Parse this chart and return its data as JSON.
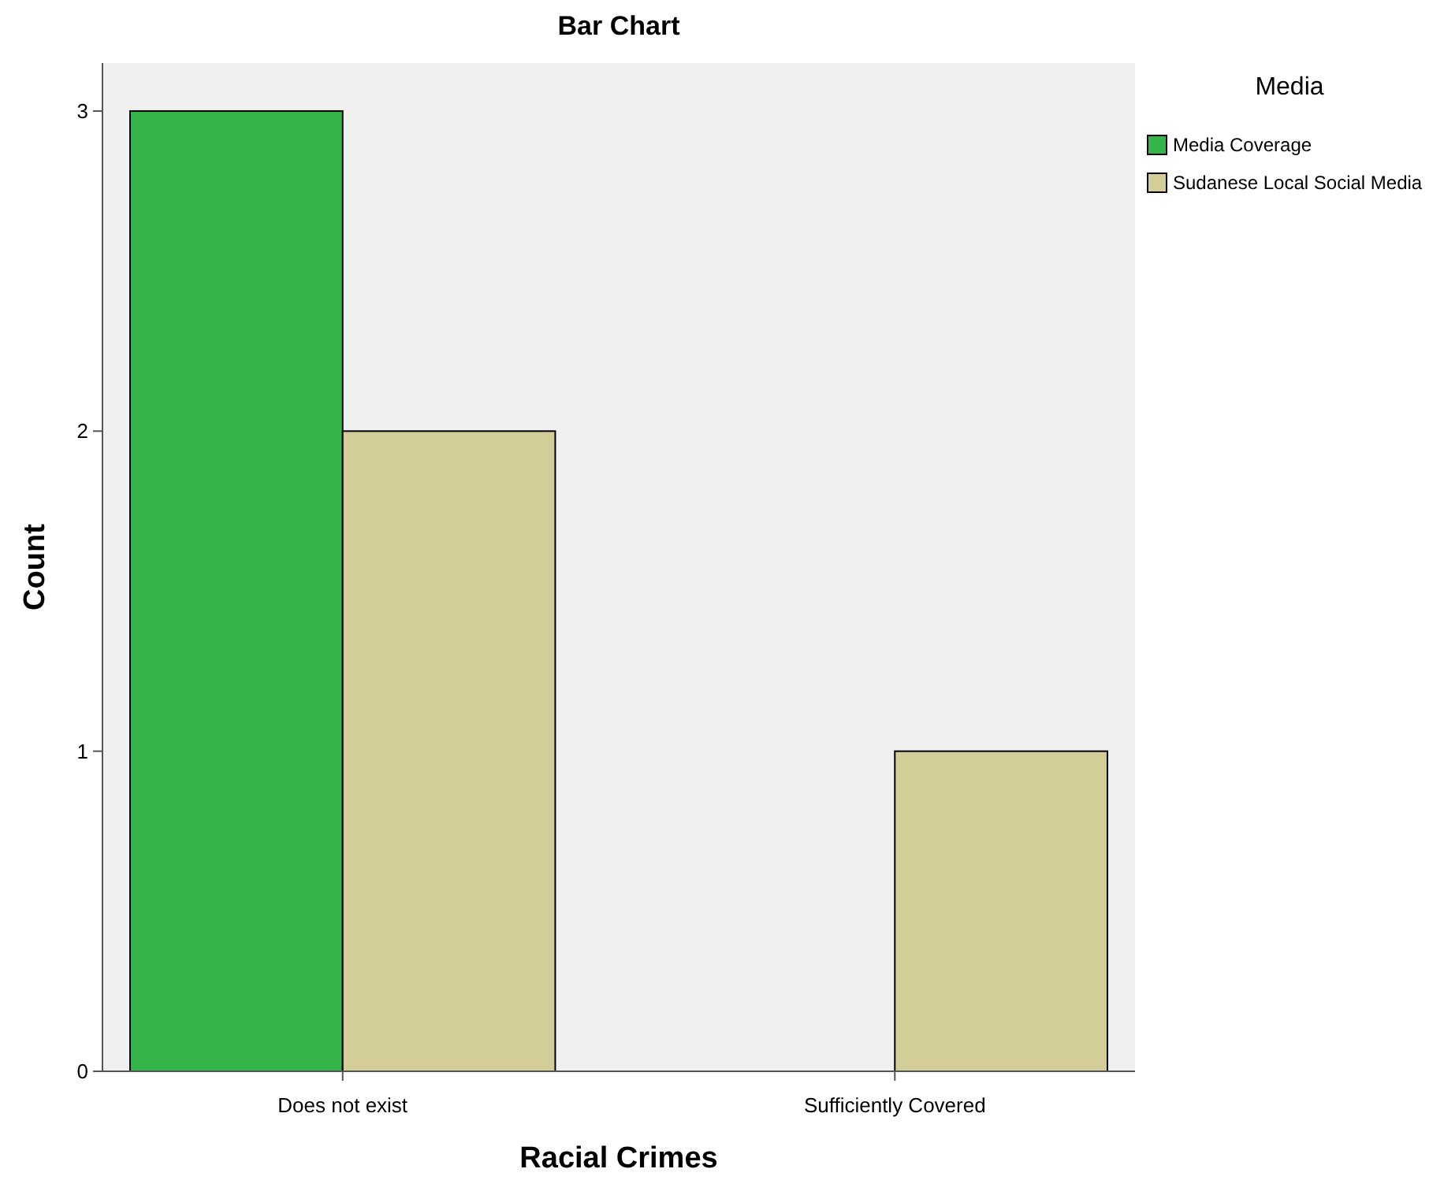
{
  "chart_data": {
    "type": "bar",
    "title": "Bar Chart",
    "xlabel": "Racial Crimes",
    "ylabel": "Count",
    "legend_title": "Media",
    "categories": [
      "Does not exist",
      "Sufficiently Covered"
    ],
    "series": [
      {
        "name": "Media Coverage",
        "color": "#33b54a",
        "values": [
          3,
          null
        ]
      },
      {
        "name": "Sudanese Local Social Media",
        "color": "#d3ce97",
        "values": [
          2,
          1
        ]
      }
    ],
    "ylim": [
      0,
      3.15
    ],
    "yticks": [
      0,
      1,
      2,
      3
    ],
    "grid": false,
    "legend": "right"
  }
}
